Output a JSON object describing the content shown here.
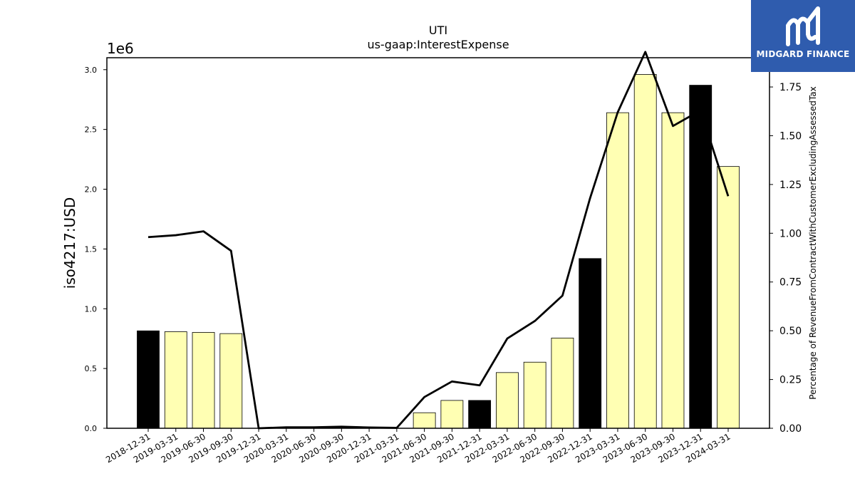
{
  "chart_data": {
    "type": "bar",
    "title": "UTI",
    "subtitle": "us-gaap:InterestExpense",
    "ylabel": "iso4217:USD",
    "y_offset_label": "1e6",
    "ylabel_right": "Percentage of RevenueFromContractWithCustomerExcludingAssessedTax",
    "categories": [
      "2018-12-31",
      "2019-03-31",
      "2019-06-30",
      "2019-09-30",
      "2019-12-31",
      "2020-03-31",
      "2020-06-30",
      "2020-09-30",
      "2020-12-31",
      "2021-03-31",
      "2021-06-30",
      "2021-09-30",
      "2021-12-31",
      "2022-03-31",
      "2022-06-30",
      "2022-09-30",
      "2022-12-31",
      "2023-03-31",
      "2023-06-30",
      "2023-09-30",
      "2023-12-31",
      "2024-03-31"
    ],
    "series": [
      {
        "axis": "left",
        "values": [
          815000,
          808000,
          802000,
          792000,
          0,
          0,
          0,
          0,
          0,
          0,
          130000,
          233000,
          233000,
          466000,
          553000,
          755000,
          1420000,
          2640000,
          2960000,
          2640000,
          2870000,
          2190000
        ],
        "bar_colors": [
          "#000000",
          "#ffffb3",
          "#ffffb3",
          "#ffffb3",
          "#ffffb3",
          "#ffffb3",
          "#ffffb3",
          "#ffffb3",
          "#ffffb3",
          "#ffffb3",
          "#ffffb3",
          "#ffffb3",
          "#000000",
          "#ffffb3",
          "#ffffb3",
          "#ffffb3",
          "#000000",
          "#ffffb3",
          "#ffffb3",
          "#ffffb3",
          "#000000",
          "#ffffb3"
        ]
      },
      {
        "axis": "right",
        "type": "line",
        "color": "#000000",
        "values": [
          0.98,
          0.99,
          1.01,
          0.91,
          0.0,
          0.005,
          0.005,
          0.008,
          0.004,
          0.002,
          0.16,
          0.24,
          0.22,
          0.46,
          0.55,
          0.68,
          1.18,
          1.62,
          1.93,
          1.55,
          1.63,
          1.19
        ]
      }
    ],
    "ylim": [
      0,
      3100000
    ],
    "yticks": [
      "0.0",
      "0.5",
      "1.0",
      "1.5",
      "2.0",
      "2.5",
      "3.0"
    ],
    "ytick_values": [
      0,
      500000,
      1000000,
      1500000,
      2000000,
      2500000,
      3000000
    ],
    "ylim_right": [
      0,
      1.9
    ],
    "yticks_right": [
      "0.00",
      "0.25",
      "0.50",
      "0.75",
      "1.00",
      "1.25",
      "1.50",
      "1.75"
    ],
    "ytick_values_right": [
      0,
      0.25,
      0.5,
      0.75,
      1.0,
      1.25,
      1.5,
      1.75
    ],
    "grid": false,
    "legend": "none"
  },
  "logo": {
    "text": "MIDGARD FINANCE",
    "background": "#2f5cae"
  }
}
